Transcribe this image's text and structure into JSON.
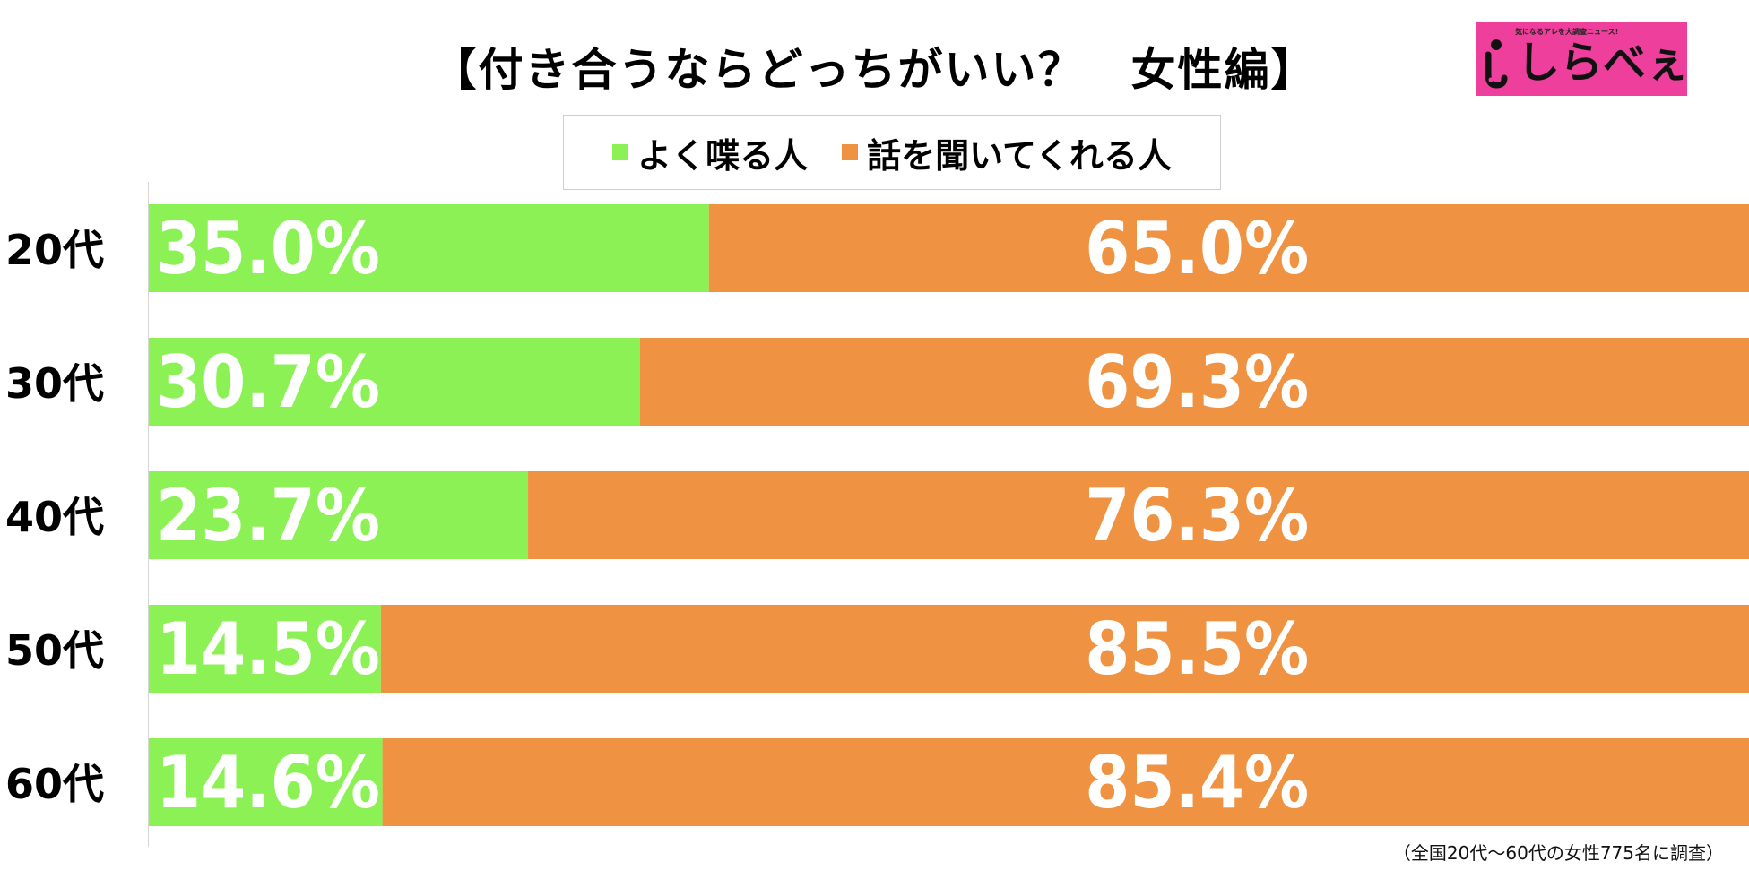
{
  "title": "【付き合うならどっちがいい？　女性編】",
  "logo": {
    "tagline": "気になるアレを大調査ニュース!",
    "name": "しらべぇ"
  },
  "footnote": "（全国20代〜60代の女性775名に調査）",
  "chart_data": {
    "type": "bar",
    "orientation": "horizontal",
    "stacked": true,
    "title": "【付き合うならどっちがいい？　女性編】",
    "categories": [
      "20代",
      "30代",
      "40代",
      "50代",
      "60代"
    ],
    "series": [
      {
        "name": "よく喋る人",
        "color": "#8bf154",
        "values": [
          35.0,
          30.7,
          23.7,
          14.5,
          14.6
        ],
        "labels": [
          "35.0%",
          "30.7%",
          "23.7%",
          "14.5%",
          "14.6%"
        ]
      },
      {
        "name": "話を聞いてくれる人",
        "color": "#ef9241",
        "values": [
          65.0,
          69.3,
          76.3,
          85.5,
          85.4
        ],
        "labels": [
          "65.0%",
          "69.3%",
          "76.3%",
          "85.5%",
          "85.4%"
        ]
      }
    ],
    "xlim": [
      0,
      100
    ],
    "legend_position": "top-center",
    "grid": false
  }
}
